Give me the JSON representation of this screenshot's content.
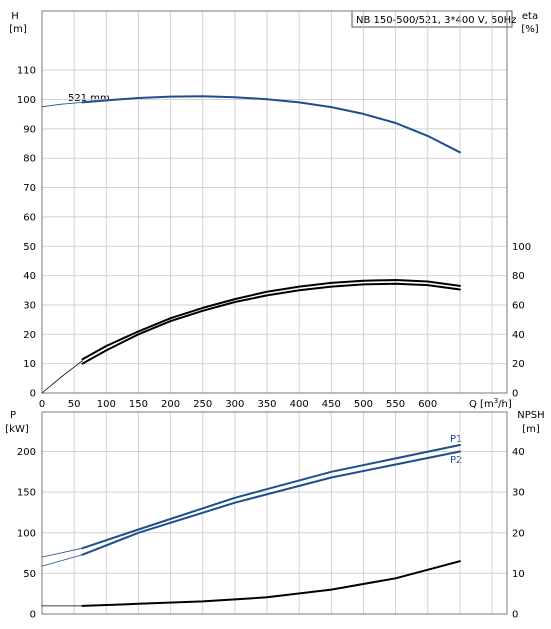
{
  "chart_data": [
    {
      "type": "line",
      "panel": "upper",
      "title": "NB 150-500/521, 3*400 V, 50Hz",
      "left_axis": {
        "label_line1": "H",
        "label_line2": "[m]",
        "range": [
          0,
          120
        ],
        "ticks": [
          "0",
          "10",
          "20",
          "30",
          "40",
          "50",
          "60",
          "70",
          "80",
          "90",
          "100",
          "110"
        ]
      },
      "right_axis": {
        "label_line1": "eta",
        "label_line2": "[%]",
        "range": [
          0,
          120
        ],
        "ticks": [
          "0",
          "20",
          "40",
          "60",
          "80",
          "100"
        ]
      },
      "x_axis": {
        "label": "Q [m³/h]",
        "range": [
          0,
          700
        ],
        "ticks": [
          "0",
          "50",
          "100",
          "150",
          "200",
          "250",
          "300",
          "350",
          "400",
          "450",
          "500",
          "550",
          "600"
        ]
      },
      "grid": true,
      "annotation": "521 mm",
      "series": [
        {
          "id": "head",
          "axis": "left",
          "color": "#1f4e8c",
          "x": [
            63,
            100,
            150,
            200,
            250,
            300,
            350,
            400,
            450,
            500,
            550,
            600,
            650
          ],
          "y": [
            99.0,
            99.7,
            100.5,
            101.0,
            101.1,
            100.8,
            100.1,
            99.0,
            97.4,
            95.1,
            92.0,
            87.6,
            82.0
          ]
        },
        {
          "id": "head_ext",
          "axis": "left",
          "color": "#1f4e8c",
          "thin": true,
          "x": [
            0,
            30,
            63
          ],
          "y": [
            97.5,
            98.4,
            99.0
          ]
        },
        {
          "id": "eta_1",
          "axis": "right",
          "color": "#000000",
          "x": [
            63,
            100,
            150,
            200,
            250,
            300,
            350,
            400,
            450,
            500,
            550,
            600,
            650
          ],
          "y": [
            23,
            32,
            42,
            51,
            58,
            64,
            69,
            72.5,
            75,
            76.5,
            77,
            76,
            73
          ]
        },
        {
          "id": "eta_2",
          "axis": "right",
          "color": "#000000",
          "x": [
            63,
            100,
            150,
            200,
            250,
            300,
            350,
            400,
            450,
            500,
            550,
            600,
            650
          ],
          "y": [
            20,
            29,
            40,
            49,
            56,
            62,
            66.5,
            70,
            72.5,
            74,
            74.5,
            73.5,
            70.5
          ]
        },
        {
          "id": "eta_ext",
          "axis": "right",
          "color": "#000000",
          "thin": true,
          "x": [
            0,
            30,
            63
          ],
          "y": [
            0,
            11,
            22
          ]
        }
      ]
    },
    {
      "type": "line",
      "panel": "lower",
      "left_axis": {
        "label_line1": "P",
        "label_line2": "[kW]",
        "range": [
          0,
          230
        ],
        "ticks": [
          "0",
          "50",
          "100",
          "150",
          "200"
        ]
      },
      "right_axis": {
        "label_line1": "NPSH",
        "label_line2": "[m]",
        "range": [
          0,
          46
        ],
        "ticks": [
          "0",
          "10",
          "20",
          "30",
          "40"
        ]
      },
      "x_axis": {
        "range": [
          0,
          700
        ]
      },
      "grid": true,
      "series": [
        {
          "id": "P1",
          "name": "P1",
          "axis": "left",
          "color": "#1f4e8c",
          "x": [
            63,
            150,
            300,
            450,
            650
          ],
          "y": [
            81,
            104,
            143,
            175,
            208
          ]
        },
        {
          "id": "P1_ext",
          "axis": "left",
          "color": "#1f4e8c",
          "thin": true,
          "x": [
            0,
            63
          ],
          "y": [
            70,
            81
          ]
        },
        {
          "id": "P2",
          "name": "P2",
          "axis": "left",
          "color": "#1f4e8c",
          "x": [
            63,
            150,
            300,
            450,
            650
          ],
          "y": [
            73,
            100,
            137,
            168,
            200
          ]
        },
        {
          "id": "P2_ext",
          "axis": "left",
          "color": "#1f4e8c",
          "thin": true,
          "x": [
            0,
            63
          ],
          "y": [
            59,
            73
          ]
        },
        {
          "id": "NPSH",
          "axis": "right",
          "color": "#000000",
          "x": [
            63,
            150,
            250,
            350,
            450,
            550,
            650
          ],
          "y": [
            2,
            2.5,
            3.1,
            4.1,
            6.0,
            8.8,
            13.0
          ]
        },
        {
          "id": "NPSH_ext",
          "axis": "right",
          "color": "#000000",
          "thin": true,
          "x": [
            0,
            63
          ],
          "y": [
            2,
            2
          ]
        }
      ]
    }
  ]
}
